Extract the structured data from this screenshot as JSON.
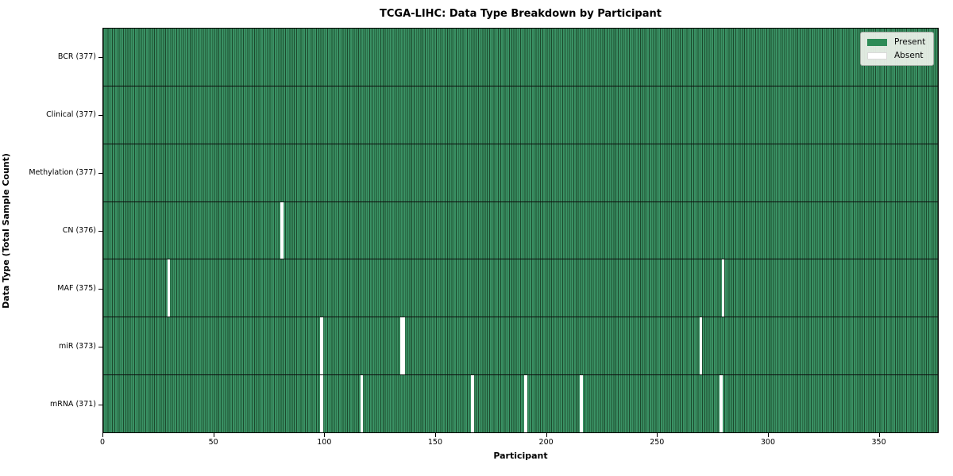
{
  "chart_data": {
    "type": "heatmap",
    "title": "TCGA-LIHC: Data Type Breakdown by Participant",
    "xlabel": "Participant",
    "ylabel": "Data Type (Total Sample Count)",
    "x_ticks": [
      0,
      50,
      100,
      150,
      200,
      250,
      300,
      350
    ],
    "x_range": [
      0,
      377
    ],
    "total_participants": 377,
    "grid": false,
    "legend_position": "upper right",
    "legend": [
      {
        "label": "Present",
        "color": "#2e8b57"
      },
      {
        "label": "Absent",
        "color": "#ffffff"
      }
    ],
    "colors": {
      "present_fill": "#3a9164",
      "cell_edge": "#1c4a2d",
      "absent_fill": "#ffffff",
      "row_separator": "#0b0b0b"
    },
    "rows": [
      {
        "name": "bcr",
        "label": "BCR (377)",
        "data_type": "BCR",
        "present_count": 377,
        "absent_participants": []
      },
      {
        "name": "clinical",
        "label": "Clinical (377)",
        "data_type": "Clinical",
        "present_count": 377,
        "absent_participants": []
      },
      {
        "name": "methylation",
        "label": "Methylation (377)",
        "data_type": "Methylation",
        "present_count": 377,
        "absent_participants": []
      },
      {
        "name": "cn",
        "label": "CN (376)",
        "data_type": "CN",
        "present_count": 376,
        "absent_participants": [
          80
        ]
      },
      {
        "name": "maf",
        "label": "MAF (375)",
        "data_type": "MAF",
        "present_count": 375,
        "absent_participants": [
          29,
          279
        ]
      },
      {
        "name": "mir",
        "label": "miR (373)",
        "data_type": "miR",
        "present_count": 373,
        "absent_participants": [
          98,
          134,
          135,
          269
        ]
      },
      {
        "name": "mrna",
        "label": "mRNA (371)",
        "data_type": "mRNA",
        "present_count": 371,
        "absent_participants": [
          98,
          116,
          166,
          190,
          215,
          278
        ]
      }
    ]
  }
}
